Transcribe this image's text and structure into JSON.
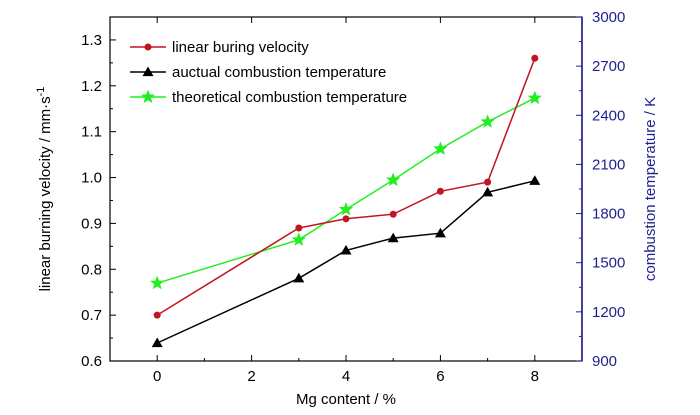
{
  "chart_data": {
    "type": "line",
    "xlabel": "Mg content / %",
    "ylabel_left": "linear burning velocity / mm·s",
    "ylabel_left_superscript": "-1",
    "ylabel_right": "combustion temperature / K",
    "x_ticks": [
      "0",
      "2",
      "4",
      "6",
      "8"
    ],
    "y_left_ticks": [
      "0.6",
      "0.7",
      "0.8",
      "0.9",
      "1.0",
      "1.1",
      "1.2",
      "1.3"
    ],
    "y_right_ticks": [
      "900",
      "1200",
      "1500",
      "1800",
      "2100",
      "2400",
      "2700",
      "3000"
    ],
    "xlim": [
      -1,
      9
    ],
    "ylim_left": [
      0.6,
      1.35
    ],
    "ylim_right": [
      900,
      3000
    ],
    "legend_position": "top-left",
    "grid": false,
    "series": [
      {
        "name": "linear buring velocity",
        "axis": "left",
        "color": "#c0161f",
        "marker": "circle",
        "x": [
          0,
          3,
          4,
          5,
          6,
          7,
          8
        ],
        "y": [
          0.7,
          0.89,
          0.91,
          0.92,
          0.97,
          0.99,
          1.26
        ]
      },
      {
        "name": "auctual combustion temperature",
        "axis": "right",
        "color": "#000000",
        "marker": "triangle",
        "x": [
          0,
          3,
          4,
          5,
          6,
          7,
          8
        ],
        "y": [
          1010,
          1405,
          1575,
          1650,
          1680,
          1930,
          2000
        ]
      },
      {
        "name": "theoretical combustion temperature",
        "axis": "right",
        "color": "#22ee22",
        "marker": "star",
        "x": [
          0,
          3,
          4,
          5,
          6,
          7,
          8
        ],
        "y": [
          1375,
          1640,
          1825,
          2005,
          2195,
          2360,
          2505
        ]
      }
    ],
    "colors": {
      "axis": "#000000",
      "right_axis": "#1f1f8f"
    }
  }
}
